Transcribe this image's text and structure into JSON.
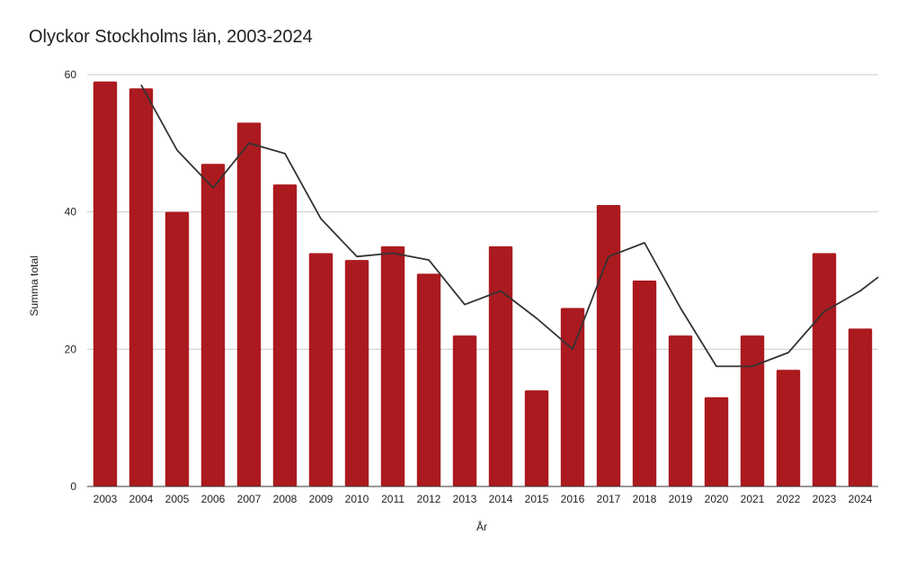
{
  "chart_data": {
    "type": "bar",
    "title": "Olyckor Stockholms län, 2003-2024",
    "xlabel": "År",
    "ylabel": "Summa total",
    "ylim": [
      0,
      60
    ],
    "yticks": [
      "0",
      "20",
      "40",
      "60"
    ],
    "grid": true,
    "categories": [
      "2003",
      "2004",
      "2005",
      "2006",
      "2007",
      "2008",
      "2009",
      "2010",
      "2011",
      "2012",
      "2013",
      "2014",
      "2015",
      "2016",
      "2017",
      "2018",
      "2019",
      "2020",
      "2021",
      "2022",
      "2023",
      "2024"
    ],
    "series": [
      {
        "type": "bar",
        "color": "#ab1a1e",
        "values": [
          59,
          58,
          40,
          47,
          53,
          44,
          34,
          33,
          35,
          31,
          22,
          35,
          14,
          26,
          41,
          30,
          22,
          13,
          22,
          17,
          34,
          23
        ]
      },
      {
        "type": "line",
        "color": "#333333",
        "values": [
          null,
          58.5,
          49,
          43.5,
          50,
          48.5,
          39,
          33.5,
          34,
          33,
          26.5,
          28.5,
          24.5,
          20,
          33.5,
          35.5,
          26,
          17.5,
          17.5,
          19.5,
          25.5,
          28.5
        ],
        "extends_to_right_edge": 30.5
      }
    ]
  }
}
